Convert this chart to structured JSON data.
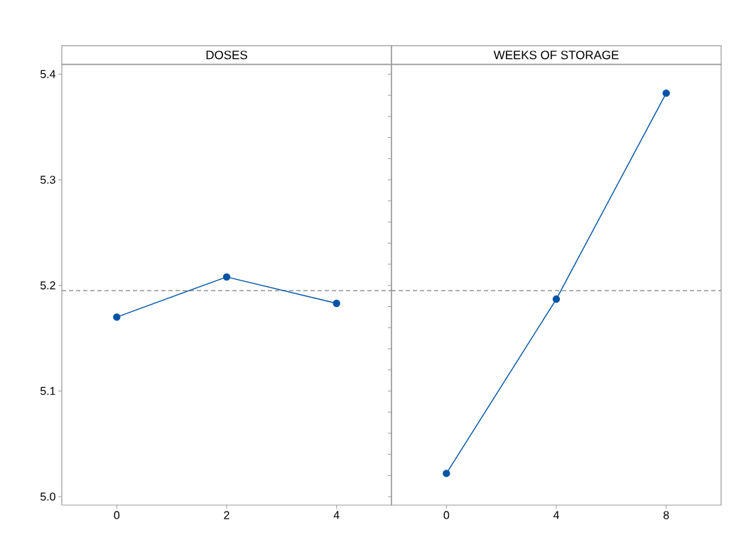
{
  "chart_data": [
    {
      "type": "line",
      "title": "DOSES",
      "categories": [
        "0",
        "2",
        "4"
      ],
      "values": [
        5.17,
        5.208,
        5.183
      ],
      "color": "#0054a6",
      "marker": "circle",
      "ylim": [
        4.992,
        5.409
      ],
      "yticks": [
        {
          "value": 5.0,
          "label": "5.0"
        },
        5.1,
        5.2,
        5.3,
        5.4
      ],
      "ref_lines": [
        {
          "axis": "y",
          "value": 5.195,
          "color": "#808080",
          "line_style": "dashed"
        }
      ]
    },
    {
      "type": "line",
      "title": "WEEKS OF STORAGE",
      "categories": [
        "0",
        "4",
        "8"
      ],
      "values": [
        5.022,
        5.187,
        5.382
      ],
      "color": "#0054a6",
      "marker": "circle",
      "ylim": [
        4.992,
        5.409
      ],
      "tick_labels": "x",
      "ref_lines": [
        {
          "axis": "y",
          "value": 5.195,
          "color": "#808080",
          "line_style": "dashed"
        }
      ]
    }
  ]
}
